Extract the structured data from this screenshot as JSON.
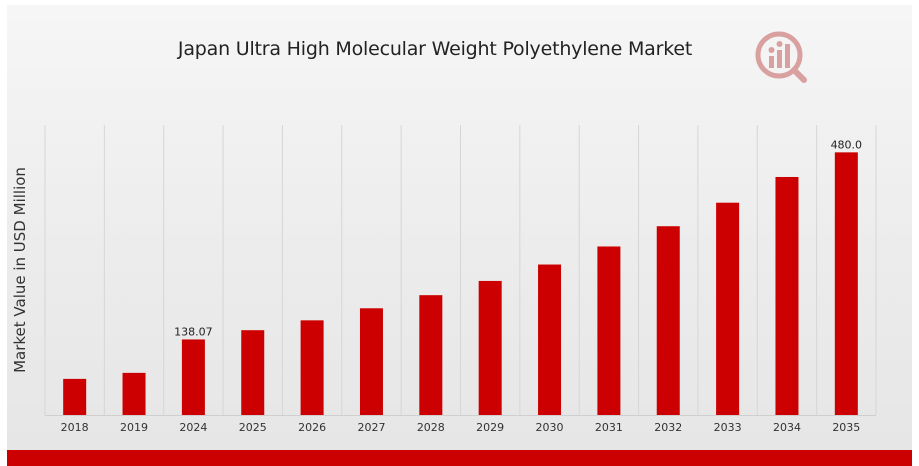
{
  "chart_data": {
    "type": "bar",
    "title": "Japan Ultra High Molecular Weight Polyethylene Market",
    "ylabel": "Market Value in USD Million",
    "xlabel": "",
    "categories": [
      "2018",
      "2019",
      "2024",
      "2025",
      "2026",
      "2027",
      "2028",
      "2029",
      "2030",
      "2031",
      "2032",
      "2033",
      "2034",
      "2035"
    ],
    "values": [
      66,
      77,
      138.07,
      155,
      173,
      195,
      219,
      245,
      275,
      308,
      345,
      388,
      435,
      480.0
    ],
    "data_labels": [
      {
        "category": "2024",
        "text": "138.07"
      },
      {
        "category": "2035",
        "text": "480.0"
      }
    ],
    "ylim": [
      0,
      530
    ],
    "grid": "vertical",
    "legend": "none",
    "bar_color": "#cc0000"
  },
  "colors": {
    "accent": "#cc0000",
    "logo": "#d9a0a0"
  },
  "logo_icon": "market-research-logo-icon"
}
